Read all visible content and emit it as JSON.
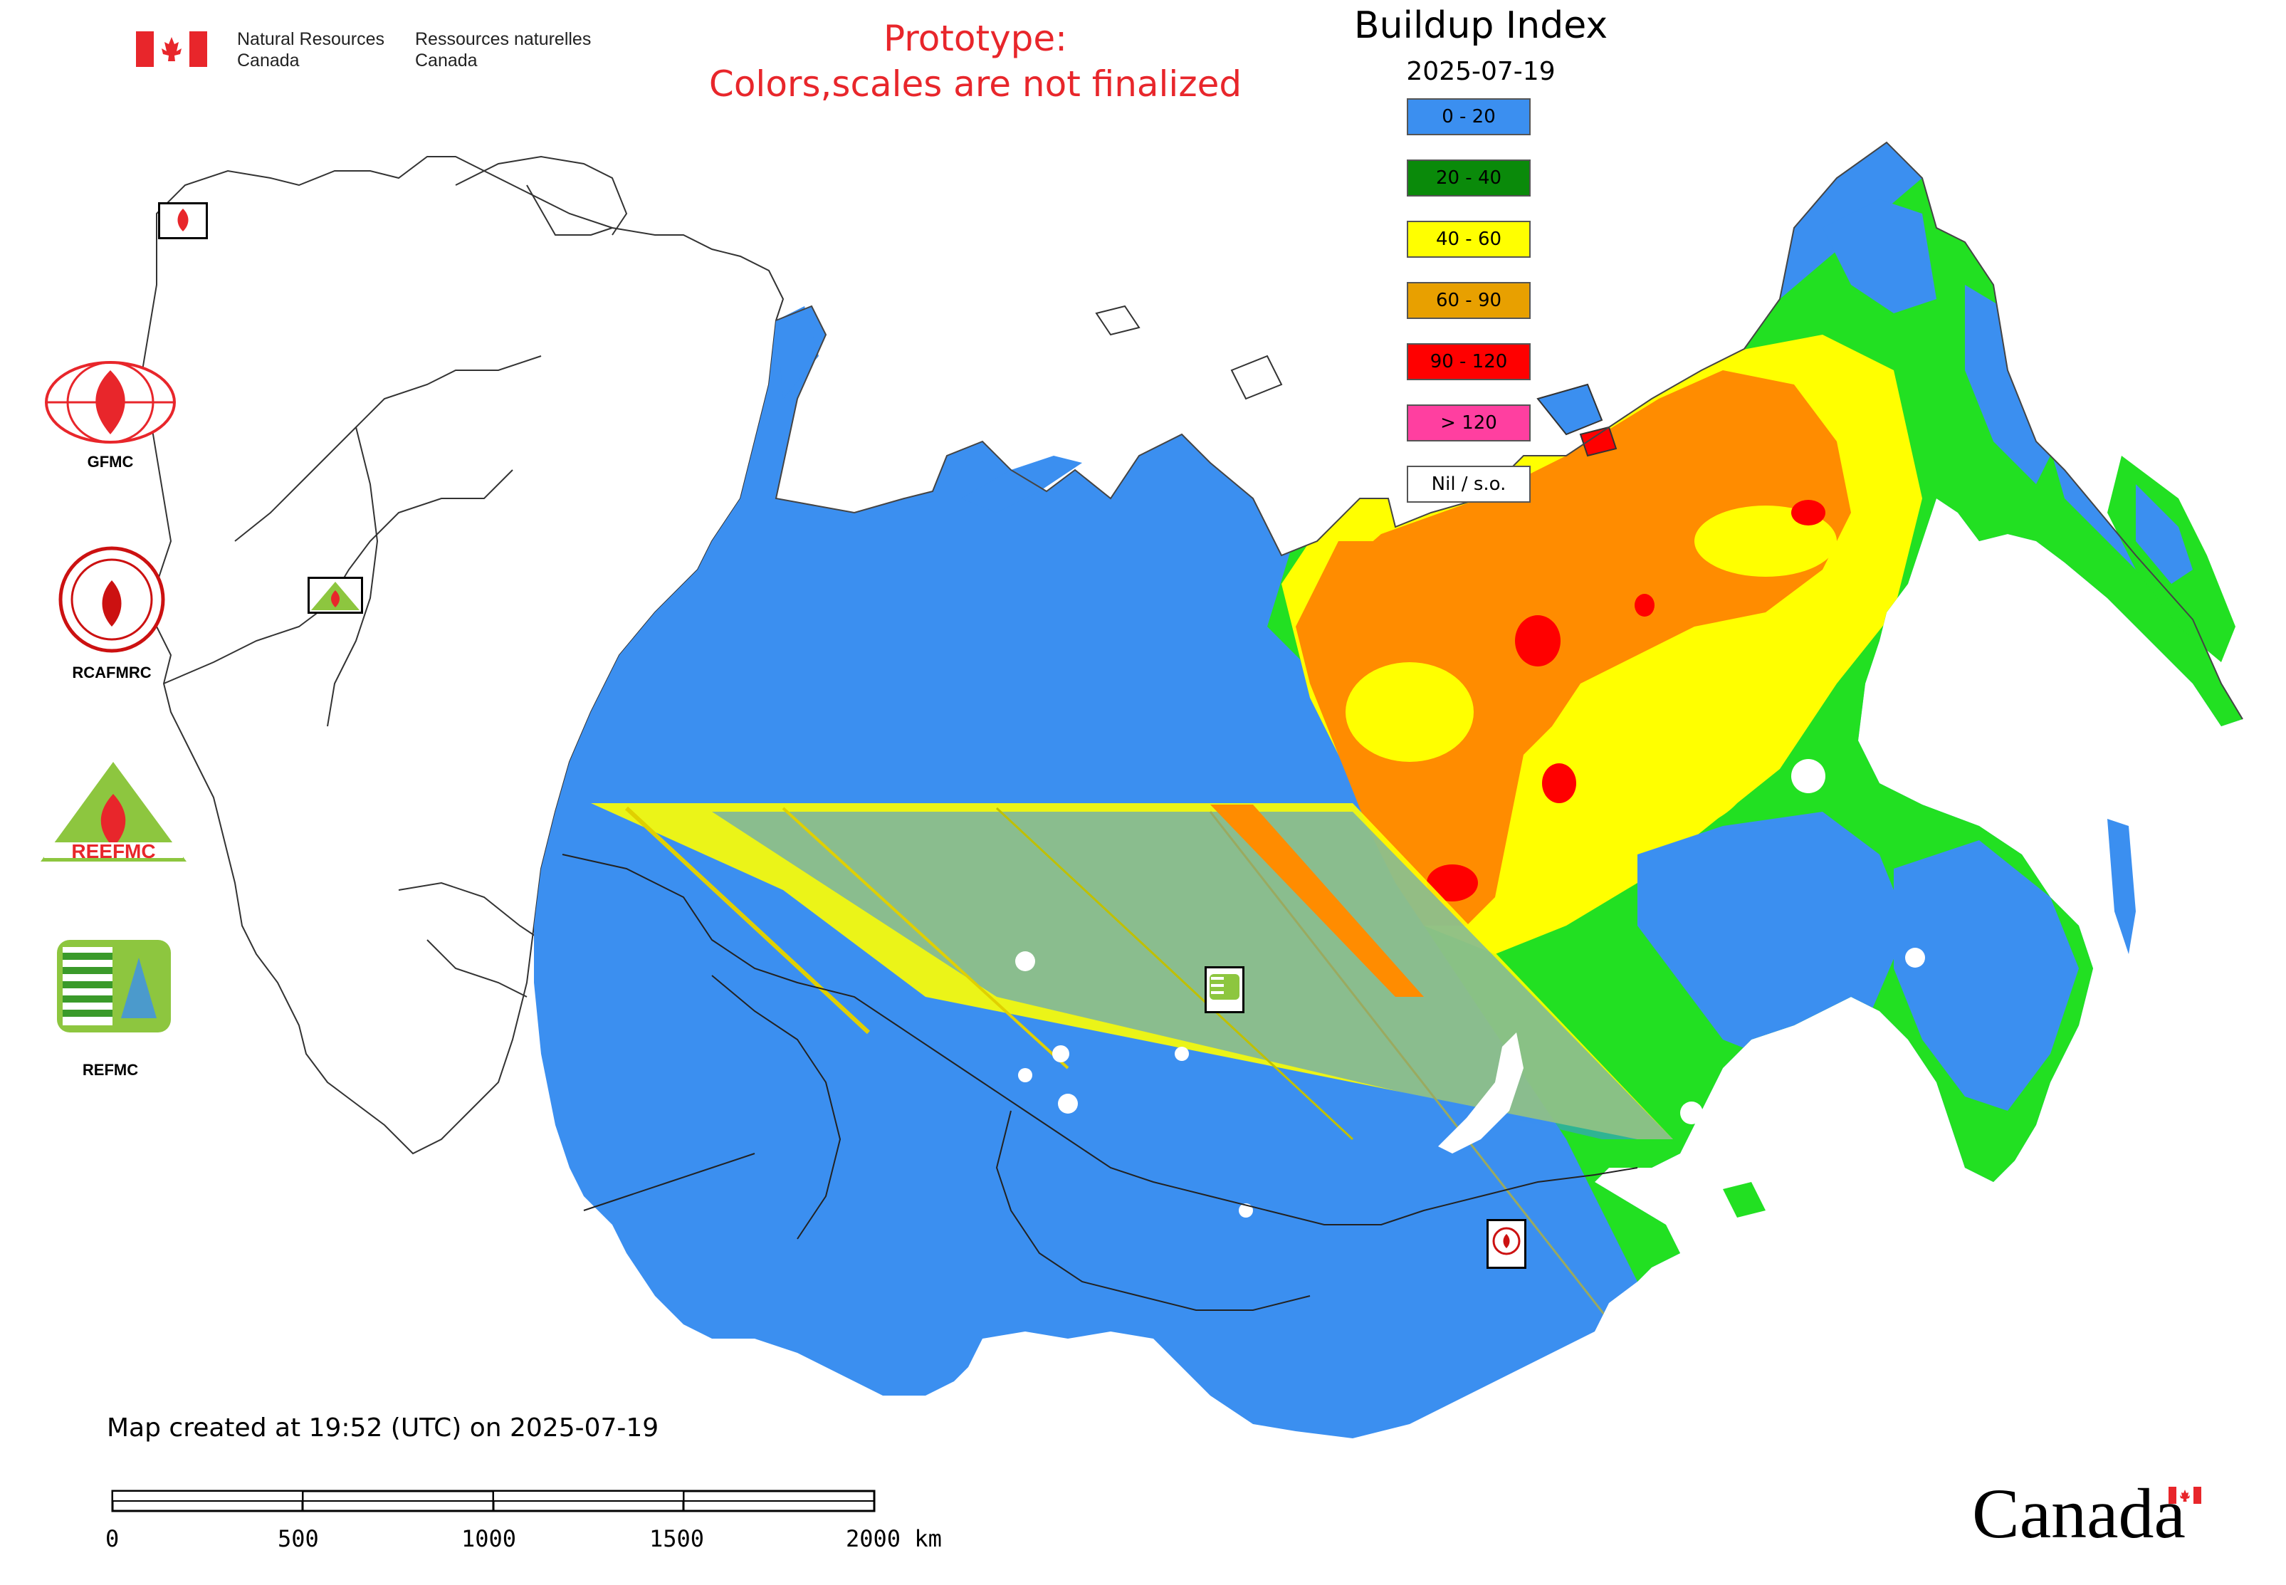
{
  "header": {
    "org_en": [
      "Natural Resources",
      "Canada"
    ],
    "org_fr": [
      "Ressources naturelles",
      "Canada"
    ],
    "prototype_line1": "Prototype:",
    "prototype_line2": "Colors,scales are not finalized"
  },
  "legend": {
    "title": "Buildup Index",
    "date": "2025-07-19",
    "items": [
      {
        "label": "0 - 20",
        "color": "#3b8ff0"
      },
      {
        "label": "20 - 40",
        "color": "#0a8a0a"
      },
      {
        "label": "40 - 60",
        "color": "#ffff00"
      },
      {
        "label": "60 - 90",
        "color": "#e8a000"
      },
      {
        "label": "90 - 120",
        "color": "#ff0000"
      },
      {
        "label": "> 120",
        "color": "#ff3fa0"
      },
      {
        "label": "Nil / s.o.",
        "color": "#ffffff"
      }
    ]
  },
  "logos": [
    {
      "label": "GFMC",
      "icon": "gfmc-logo"
    },
    {
      "label": "RCAFMRC",
      "icon": "rcafmrc-logo"
    },
    {
      "label": "REEFMC",
      "icon": "reefmc-logo"
    },
    {
      "label": "REFMC",
      "icon": "refmc-logo"
    }
  ],
  "footer": {
    "created": "Map created at 19:52 (UTC) on 2025-07-19",
    "scale_labels": [
      "0",
      "500",
      "1000",
      "1500",
      "2000 km"
    ],
    "wordmark": "Canada"
  }
}
